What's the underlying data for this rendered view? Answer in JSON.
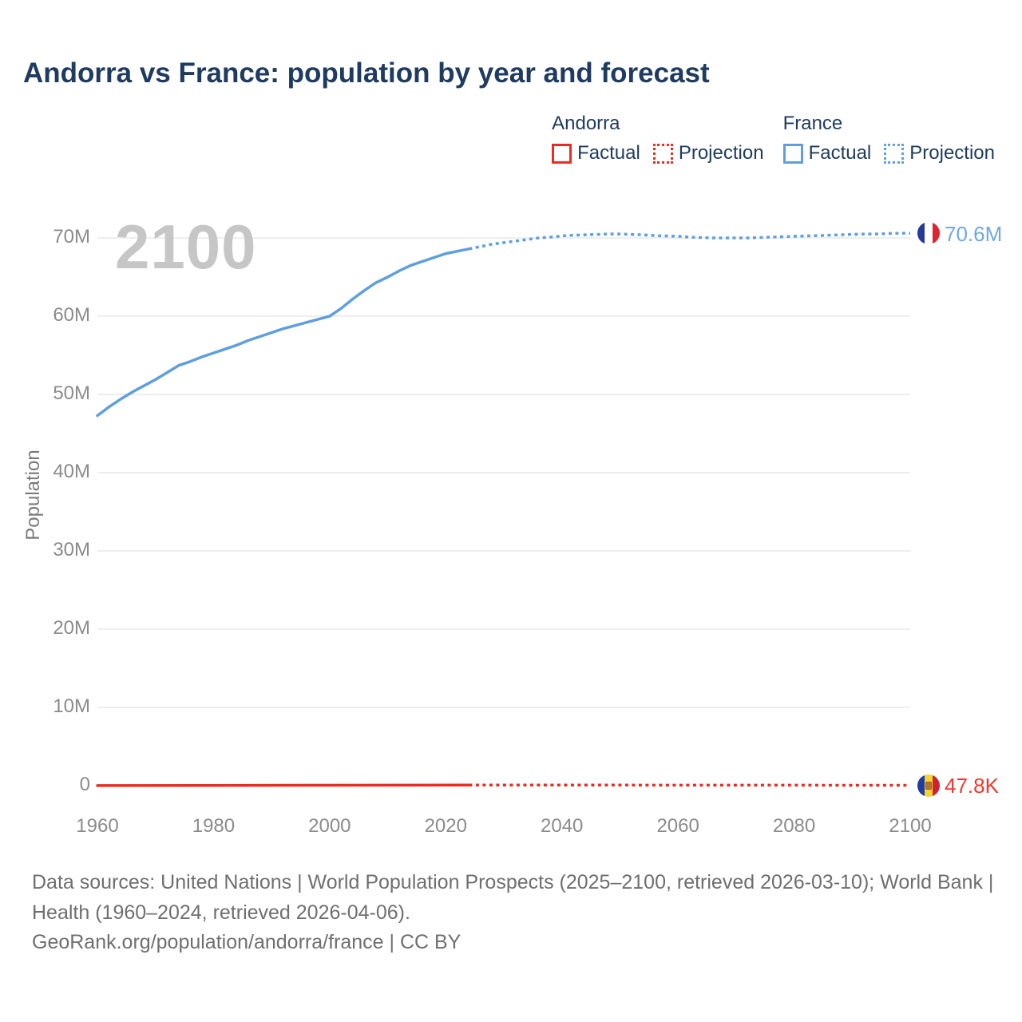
{
  "title": "Andorra vs France: population by year and forecast",
  "watermark": "2100",
  "legend": {
    "groups": [
      {
        "country": "Andorra",
        "color": "#ee2b21",
        "items": [
          {
            "label": "Factual",
            "line_style": "solid"
          },
          {
            "label": "Projection",
            "line_style": "dotted"
          }
        ]
      },
      {
        "country": "France",
        "color": "#5f9fdd",
        "items": [
          {
            "label": "Factual",
            "line_style": "solid"
          },
          {
            "label": "Projection",
            "line_style": "dotted"
          }
        ]
      }
    ]
  },
  "chart_data": {
    "type": "line",
    "title": "Andorra vs France: population by year and forecast",
    "xlabel": "",
    "ylabel": "Population",
    "y_unit": "millions",
    "xlim": [
      1960,
      2100
    ],
    "ylim": [
      0,
      73
    ],
    "grid": "horizontal",
    "legend_position": "top-right",
    "x_ticks": [
      1960,
      1980,
      2000,
      2020,
      2040,
      2060,
      2080,
      2100
    ],
    "y_ticks": [
      {
        "value": 0,
        "label": "0"
      },
      {
        "value": 10,
        "label": "10M"
      },
      {
        "value": 20,
        "label": "20M"
      },
      {
        "value": 30,
        "label": "30M"
      },
      {
        "value": 40,
        "label": "40M"
      },
      {
        "value": 50,
        "label": "50M"
      },
      {
        "value": 60,
        "label": "60M"
      },
      {
        "value": 70,
        "label": "70M"
      }
    ],
    "series": [
      {
        "name": "France Factual",
        "country": "France",
        "kind": "factual",
        "style": "solid",
        "color": "#5f9fdd",
        "x": [
          1960,
          1962,
          1964,
          1966,
          1968,
          1970,
          1972,
          1974,
          1976,
          1978,
          1980,
          1982,
          1984,
          1986,
          1988,
          1990,
          1992,
          1994,
          1996,
          1998,
          2000,
          2002,
          2004,
          2006,
          2008,
          2010,
          2012,
          2014,
          2016,
          2018,
          2020,
          2022,
          2024
        ],
        "y": [
          47.3,
          48.4,
          49.4,
          50.3,
          51.1,
          51.9,
          52.8,
          53.7,
          54.2,
          54.8,
          55.3,
          55.8,
          56.3,
          56.9,
          57.4,
          57.9,
          58.4,
          58.8,
          59.2,
          59.6,
          60.0,
          61.0,
          62.2,
          63.3,
          64.3,
          65.0,
          65.8,
          66.5,
          67.0,
          67.5,
          68.0,
          68.3,
          68.6
        ]
      },
      {
        "name": "France Projection",
        "country": "France",
        "kind": "projection",
        "style": "dotted",
        "color": "#5f9fdd",
        "x": [
          2024,
          2026,
          2028,
          2030,
          2032,
          2034,
          2036,
          2038,
          2040,
          2042,
          2044,
          2046,
          2048,
          2050,
          2052,
          2054,
          2056,
          2058,
          2060,
          2062,
          2064,
          2066,
          2068,
          2070,
          2072,
          2074,
          2076,
          2078,
          2080,
          2082,
          2084,
          2086,
          2088,
          2090,
          2092,
          2094,
          2096,
          2098,
          2100
        ],
        "y": [
          68.6,
          68.9,
          69.2,
          69.4,
          69.6,
          69.8,
          70.0,
          70.1,
          70.25,
          70.35,
          70.4,
          70.45,
          70.5,
          70.5,
          70.45,
          70.4,
          70.3,
          70.25,
          70.2,
          70.1,
          70.05,
          70.0,
          70.0,
          70.0,
          70.0,
          70.05,
          70.1,
          70.15,
          70.2,
          70.25,
          70.3,
          70.35,
          70.4,
          70.45,
          70.5,
          70.5,
          70.55,
          70.6,
          70.6
        ]
      },
      {
        "name": "Andorra Factual",
        "country": "Andorra",
        "kind": "factual",
        "style": "solid",
        "color": "#ee2b21",
        "x": [
          1960,
          2024
        ],
        "y": [
          0.013,
          0.081
        ]
      },
      {
        "name": "Andorra Projection",
        "country": "Andorra",
        "kind": "projection",
        "style": "dotted",
        "color": "#ee2b21",
        "x": [
          2024,
          2100
        ],
        "y": [
          0.081,
          0.0478
        ]
      }
    ],
    "end_labels": [
      {
        "country": "France",
        "label": "70.6M",
        "color": "#6fa8e2"
      },
      {
        "country": "Andorra",
        "label": "47.8K",
        "color": "#f0392e"
      }
    ]
  },
  "icons": {
    "france-flag-icon": [
      "#26399b",
      "#ffffff",
      "#e0242f"
    ],
    "andorra-flag-icon": [
      "#1f3c9e",
      "#f5d332",
      "#cf2335"
    ]
  },
  "footer": {
    "sources": "Data sources: United Nations | World Population Prospects (2025–2100, retrieved 2026-03-10); World Bank | Health (1960–2024, retrieved 2026-04-06).",
    "attribution": "GeoRank.org/population/andorra/france | CC BY"
  }
}
